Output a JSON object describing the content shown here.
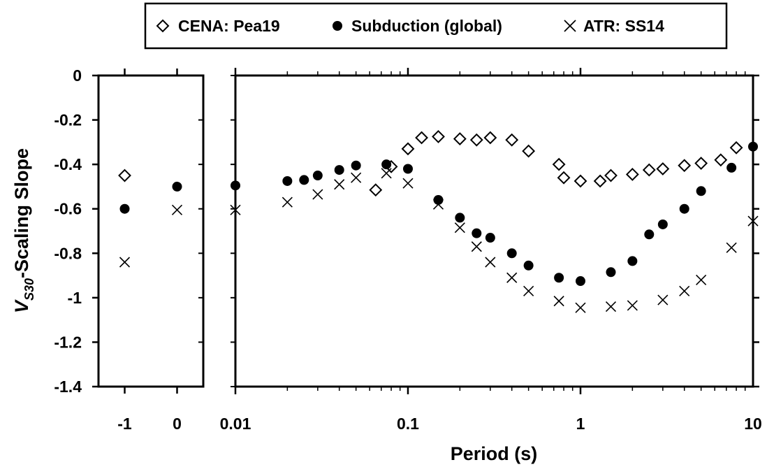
{
  "chart_data": {
    "type": "scatter",
    "xlabel": "Period (s)",
    "ylabel_main": "V",
    "ylabel_sub": "S30",
    "ylabel_rest": "-Scaling Slope",
    "ylim": [
      -1.4,
      0
    ],
    "yticks": [
      0,
      -0.2,
      -0.4,
      -0.6,
      -0.8,
      -1,
      -1.2,
      -1.4
    ],
    "ytick_labels": [
      "0",
      "-0.2",
      "-0.4",
      "-0.6",
      "-0.8",
      "-1",
      "-1.2",
      "-1.4"
    ],
    "x_scale": "log",
    "xlim": [
      0.01,
      10
    ],
    "xtick_labels": [
      "0.01",
      "0.1",
      "1",
      "10"
    ],
    "xticks": [
      0.01,
      0.1,
      1,
      10
    ],
    "side_panel": {
      "xlim": [
        -1.5,
        0.5
      ],
      "xticks": [
        -1,
        0
      ],
      "xtick_labels": [
        "-1",
        "0"
      ]
    },
    "legend": {
      "placement": "top-center",
      "entries": [
        "CENA: Pea19",
        "Subduction (global)",
        "ATR: SS14"
      ]
    },
    "series": [
      {
        "name": "CENA: Pea19",
        "marker": "diamond",
        "side_points": [
          [
            -1,
            -0.45
          ]
        ],
        "points": [
          [
            0.065,
            -0.515
          ],
          [
            0.08,
            -0.41
          ],
          [
            0.1,
            -0.33
          ],
          [
            0.12,
            -0.28
          ],
          [
            0.15,
            -0.275
          ],
          [
            0.2,
            -0.285
          ],
          [
            0.25,
            -0.29
          ],
          [
            0.3,
            -0.28
          ],
          [
            0.4,
            -0.29
          ],
          [
            0.5,
            -0.34
          ],
          [
            0.75,
            -0.4
          ],
          [
            0.8,
            -0.46
          ],
          [
            1,
            -0.475
          ],
          [
            1.3,
            -0.475
          ],
          [
            1.5,
            -0.45
          ],
          [
            2,
            -0.445
          ],
          [
            2.5,
            -0.425
          ],
          [
            3,
            -0.42
          ],
          [
            4,
            -0.405
          ],
          [
            5,
            -0.395
          ],
          [
            6.5,
            -0.38
          ],
          [
            8,
            -0.325
          ]
        ]
      },
      {
        "name": "Subduction (global)",
        "marker": "circle",
        "side_points": [
          [
            -1,
            -0.6
          ],
          [
            0,
            -0.5
          ]
        ],
        "points": [
          [
            0.01,
            -0.495
          ],
          [
            0.02,
            -0.475
          ],
          [
            0.025,
            -0.47
          ],
          [
            0.03,
            -0.45
          ],
          [
            0.04,
            -0.425
          ],
          [
            0.05,
            -0.405
          ],
          [
            0.075,
            -0.4
          ],
          [
            0.1,
            -0.42
          ],
          [
            0.15,
            -0.56
          ],
          [
            0.2,
            -0.64
          ],
          [
            0.25,
            -0.71
          ],
          [
            0.3,
            -0.73
          ],
          [
            0.4,
            -0.8
          ],
          [
            0.5,
            -0.855
          ],
          [
            0.75,
            -0.91
          ],
          [
            1,
            -0.925
          ],
          [
            1.5,
            -0.885
          ],
          [
            2,
            -0.835
          ],
          [
            2.5,
            -0.715
          ],
          [
            3,
            -0.67
          ],
          [
            4,
            -0.6
          ],
          [
            5,
            -0.52
          ],
          [
            7.5,
            -0.415
          ],
          [
            10,
            -0.32
          ]
        ]
      },
      {
        "name": "ATR: SS14",
        "marker": "x",
        "side_points": [
          [
            -1,
            -0.84
          ],
          [
            0,
            -0.605
          ]
        ],
        "points": [
          [
            0.01,
            -0.605
          ],
          [
            0.02,
            -0.57
          ],
          [
            0.03,
            -0.535
          ],
          [
            0.04,
            -0.49
          ],
          [
            0.05,
            -0.46
          ],
          [
            0.075,
            -0.44
          ],
          [
            0.1,
            -0.485
          ],
          [
            0.15,
            -0.58
          ],
          [
            0.2,
            -0.685
          ],
          [
            0.25,
            -0.77
          ],
          [
            0.3,
            -0.84
          ],
          [
            0.4,
            -0.91
          ],
          [
            0.5,
            -0.97
          ],
          [
            0.75,
            -1.015
          ],
          [
            1,
            -1.045
          ],
          [
            1.5,
            -1.04
          ],
          [
            2,
            -1.035
          ],
          [
            3,
            -1.01
          ],
          [
            4,
            -0.97
          ],
          [
            5,
            -0.92
          ],
          [
            7.5,
            -0.775
          ],
          [
            10,
            -0.655
          ]
        ]
      }
    ]
  }
}
